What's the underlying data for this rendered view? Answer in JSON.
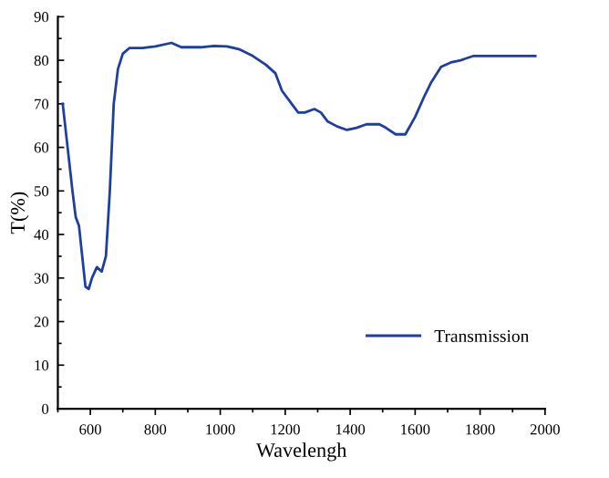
{
  "chart_data": {
    "type": "line",
    "xlabel": "Wavelengh",
    "ylabel": "T(%)",
    "xlim": [
      500,
      2000
    ],
    "ylim": [
      0,
      90
    ],
    "xticks": [
      600,
      800,
      1000,
      1200,
      1400,
      1600,
      1800,
      2000
    ],
    "yticks": [
      0,
      10,
      20,
      30,
      40,
      50,
      60,
      70,
      80,
      90
    ],
    "grid": false,
    "legend": "bottom right",
    "series": [
      {
        "name": "Transmission",
        "color": "#1f3fa0",
        "line_style": "solid",
        "x": [
          515,
          530,
          545,
          555,
          565,
          575,
          585,
          595,
          605,
          620,
          635,
          648,
          660,
          672,
          685,
          700,
          720,
          760,
          800,
          850,
          880,
          940,
          980,
          1020,
          1060,
          1100,
          1140,
          1170,
          1190,
          1220,
          1240,
          1260,
          1290,
          1310,
          1330,
          1360,
          1390,
          1420,
          1450,
          1490,
          1510,
          1540,
          1570,
          1600,
          1630,
          1650,
          1680,
          1710,
          1740,
          1780,
          1970
        ],
        "values": [
          70,
          60,
          50,
          44,
          42,
          35,
          28,
          27.5,
          30,
          32.5,
          31.5,
          35,
          50,
          70,
          78,
          81.5,
          82.8,
          82.8,
          83.2,
          84,
          83,
          83,
          83.3,
          83.2,
          82.5,
          81,
          79,
          77,
          73,
          70,
          68,
          68,
          68.8,
          68,
          66,
          64.8,
          64,
          64.5,
          65.3,
          65.3,
          64.5,
          63,
          63,
          67,
          72,
          75,
          78.5,
          79.5,
          80,
          81,
          81
        ]
      }
    ]
  }
}
